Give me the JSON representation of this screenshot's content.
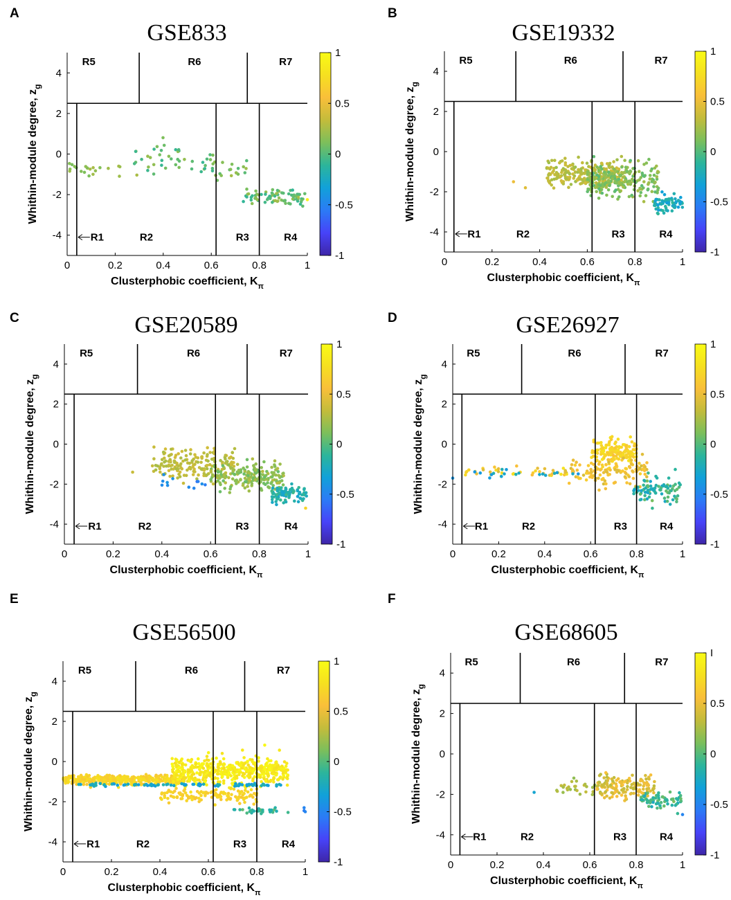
{
  "figure": {
    "colorbar_ticks": [
      "1",
      "0.5",
      "0",
      "-0.5",
      "-1"
    ],
    "colorbar_ticks_alt": [
      "I",
      "0.5",
      "0",
      "-0.5",
      "-1"
    ],
    "colormap": [
      "#3e26a8",
      "#4743f8",
      "#2b7bf6",
      "#11a1d9",
      "#2cb59b",
      "#7cbf5b",
      "#c3bc3b",
      "#f9bf3a",
      "#f6e020",
      "#f9fb15"
    ],
    "axis_color": "#000000"
  },
  "chart_data": [
    {
      "type": "scatter",
      "panel": "A",
      "title": "GSE833",
      "xlabel": "Clusterphobic coefficient, K",
      "xlabel_sub": "π",
      "ylabel": "Whithin-module degree, z",
      "ylabel_sub": "g",
      "xlim": [
        0,
        1
      ],
      "ylim": [
        -5,
        5
      ],
      "xticks": [
        "0",
        "0.2",
        "0.4",
        "0.6",
        "0.8",
        "1"
      ],
      "yticks": [
        "4",
        "2",
        "0",
        "-2",
        "-4"
      ],
      "regions": [
        "R1",
        "R2",
        "R3",
        "R4",
        "R5",
        "R6",
        "R7"
      ],
      "boundaries": {
        "z": 2.5,
        "k_r1": 0.04,
        "k_r6_left": 0.3,
        "k_r6_right": 0.75,
        "k_r3": 0.62,
        "k_r4": 0.8
      },
      "colorbar_label_set": "colorbar_ticks",
      "clusters": [
        {
          "n": 22,
          "kmin": 0.0,
          "kmax": 0.3,
          "zc": -0.7,
          "zs": 0.35,
          "cmin": 0.1,
          "cmax": 0.3,
          "seed": 11
        },
        {
          "n": 45,
          "kmin": 0.28,
          "kmax": 0.62,
          "zc": -0.3,
          "zs": 0.65,
          "cmin": -0.1,
          "cmax": 0.2,
          "seed": 12
        },
        {
          "n": 18,
          "kmin": 0.6,
          "kmax": 0.75,
          "zc": -0.9,
          "zs": 0.5,
          "cmin": 0.0,
          "cmax": 0.25,
          "seed": 13
        },
        {
          "n": 75,
          "kmin": 0.73,
          "kmax": 1.0,
          "zc": -2.1,
          "zs": 0.35,
          "cmin": -0.1,
          "cmax": 0.25,
          "seed": 14
        }
      ],
      "extra_points": [
        [
          1.0,
          -2.25,
          0.9
        ]
      ]
    },
    {
      "type": "scatter",
      "panel": "B",
      "title": "GSE19332",
      "xlabel": "Clusterphobic coefficient, K",
      "xlabel_sub": "π",
      "ylabel": "Whithin-module degree, z",
      "ylabel_sub": "g",
      "xlim": [
        0,
        1
      ],
      "ylim": [
        -5,
        5
      ],
      "xticks": [
        "0",
        "0.2",
        "0.4",
        "0.6",
        "0.8",
        "1"
      ],
      "yticks": [
        "4",
        "2",
        "0",
        "-2",
        "-4"
      ],
      "regions": [
        "R1",
        "R2",
        "R3",
        "R4",
        "R5",
        "R6",
        "R7"
      ],
      "boundaries": {
        "z": 2.5,
        "k_r1": 0.04,
        "k_r6_left": 0.3,
        "k_r6_right": 0.75,
        "k_r3": 0.62,
        "k_r4": 0.8
      },
      "colorbar_label_set": "colorbar_ticks",
      "clusters": [
        {
          "n": 260,
          "kmin": 0.43,
          "kmax": 0.75,
          "zc": -1.1,
          "zs": 0.55,
          "cmin": 0.2,
          "cmax": 0.4,
          "seed": 21
        },
        {
          "n": 220,
          "kmin": 0.6,
          "kmax": 0.9,
          "zc": -1.5,
          "zs": 0.65,
          "cmin": 0.0,
          "cmax": 0.25,
          "seed": 22
        },
        {
          "n": 70,
          "kmin": 0.88,
          "kmax": 1.0,
          "zc": -2.6,
          "zs": 0.4,
          "cmin": -0.35,
          "cmax": -0.1,
          "seed": 23
        }
      ],
      "extra_points": [
        [
          0.29,
          -1.5,
          0.5
        ],
        [
          0.34,
          -1.8,
          0.45
        ]
      ]
    },
    {
      "type": "scatter",
      "panel": "C",
      "title": "GSE20589",
      "xlabel": "Clusterphobic coefficient, K",
      "xlabel_sub": "π",
      "ylabel": "Whithin-module degree, z",
      "ylabel_sub": "g",
      "xlim": [
        0,
        1
      ],
      "ylim": [
        -5,
        5
      ],
      "xticks": [
        "0",
        "0.2",
        "0.4",
        "0.6",
        "0.8",
        "1"
      ],
      "yticks": [
        "4",
        "2",
        "0",
        "-2",
        "-4"
      ],
      "regions": [
        "R1",
        "R2",
        "R3",
        "R4",
        "R5",
        "R6",
        "R7"
      ],
      "boundaries": {
        "z": 2.5,
        "k_r1": 0.04,
        "k_r6_left": 0.3,
        "k_r6_right": 0.75,
        "k_r3": 0.62,
        "k_r4": 0.8
      },
      "colorbar_label_set": "colorbar_ticks",
      "clusters": [
        {
          "n": 180,
          "kmin": 0.36,
          "kmax": 0.7,
          "zc": -1.0,
          "zs": 0.6,
          "cmin": 0.25,
          "cmax": 0.4,
          "seed": 31
        },
        {
          "n": 200,
          "kmin": 0.6,
          "kmax": 0.9,
          "zc": -1.6,
          "zs": 0.55,
          "cmin": 0.05,
          "cmax": 0.3,
          "seed": 32
        },
        {
          "n": 90,
          "kmin": 0.85,
          "kmax": 1.0,
          "zc": -2.5,
          "zs": 0.35,
          "cmin": -0.3,
          "cmax": -0.05,
          "seed": 33
        },
        {
          "n": 12,
          "kmin": 0.4,
          "kmax": 0.58,
          "zc": -1.9,
          "zs": 0.25,
          "cmin": -0.6,
          "cmax": -0.4,
          "seed": 34
        }
      ],
      "extra_points": [
        [
          0.28,
          -1.4,
          0.35
        ],
        [
          0.99,
          -3.2,
          0.7
        ]
      ]
    },
    {
      "type": "scatter",
      "panel": "D",
      "title": "GSE26927",
      "xlabel": "Clusterphobic coefficient, K",
      "xlabel_sub": "π",
      "ylabel": "Whithin-module degree, z",
      "ylabel_sub": "g",
      "xlim": [
        0,
        1
      ],
      "ylim": [
        -5,
        5
      ],
      "xticks": [
        "0",
        "0.2",
        "0.4",
        "0.6",
        "0.8",
        "1"
      ],
      "yticks": [
        "4",
        "2",
        "0",
        "-2",
        "-4"
      ],
      "regions": [
        "R1",
        "R2",
        "R3",
        "R4",
        "R5",
        "R6",
        "R7"
      ],
      "boundaries": {
        "z": 2.5,
        "k_r1": 0.04,
        "k_r6_left": 0.3,
        "k_r6_right": 0.75,
        "k_r3": 0.62,
        "k_r4": 0.8
      },
      "colorbar_label_set": "colorbar_ticks",
      "clusters": [
        {
          "n": 40,
          "kmin": 0.05,
          "kmax": 0.5,
          "zc": -1.4,
          "zs": 0.2,
          "cmin": 0.4,
          "cmax": 0.8,
          "seed": 41
        },
        {
          "n": 160,
          "kmin": 0.6,
          "kmax": 0.8,
          "zc": -0.4,
          "zs": 0.55,
          "cmin": 0.6,
          "cmax": 0.8,
          "seed": 42
        },
        {
          "n": 120,
          "kmin": 0.5,
          "kmax": 0.85,
          "zc": -1.4,
          "zs": 0.6,
          "cmin": 0.4,
          "cmax": 0.7,
          "seed": 43
        },
        {
          "n": 90,
          "kmin": 0.78,
          "kmax": 1.0,
          "zc": -2.3,
          "zs": 0.5,
          "cmin": -0.3,
          "cmax": 0.1,
          "seed": 44
        },
        {
          "n": 18,
          "kmin": 0.08,
          "kmax": 0.6,
          "zc": -1.5,
          "zs": 0.2,
          "cmin": -0.4,
          "cmax": -0.15,
          "seed": 45
        }
      ],
      "extra_points": [
        [
          0.0,
          -1.7,
          -0.4
        ]
      ]
    },
    {
      "type": "scatter",
      "panel": "E",
      "title": "GSE56500",
      "xlabel": "Clusterphobic coefficient, K",
      "xlabel_sub": "π",
      "ylabel": "Whithin-module degree, z",
      "ylabel_sub": "g",
      "xlim": [
        0,
        1
      ],
      "ylim": [
        -5,
        5
      ],
      "xticks": [
        "0",
        "0.2",
        "0.4",
        "0.6",
        "0.8",
        "1"
      ],
      "yticks": [
        "4",
        "2",
        "0",
        "-2",
        "-4"
      ],
      "regions": [
        "R1",
        "R2",
        "R3",
        "R4",
        "R5",
        "R6",
        "R7"
      ],
      "boundaries": {
        "z": 2.5,
        "k_r1": 0.04,
        "k_r6_left": 0.3,
        "k_r6_right": 0.75,
        "k_r3": 0.62,
        "k_r4": 0.8
      },
      "colorbar_label_set": "colorbar_ticks",
      "clusters": [
        {
          "n": 380,
          "kmin": 0.0,
          "kmax": 0.5,
          "zc": -0.9,
          "zs": 0.2,
          "cmin": 0.6,
          "cmax": 0.8,
          "seed": 51
        },
        {
          "n": 500,
          "kmin": 0.45,
          "kmax": 0.93,
          "zc": -0.5,
          "zs": 0.55,
          "cmin": 0.75,
          "cmax": 1.0,
          "seed": 52
        },
        {
          "n": 120,
          "kmin": 0.4,
          "kmax": 0.8,
          "zc": -1.7,
          "zs": 0.3,
          "cmin": 0.6,
          "cmax": 0.75,
          "seed": 53
        },
        {
          "n": 90,
          "kmin": 0.05,
          "kmax": 0.9,
          "zc": -1.15,
          "zs": 0.06,
          "cmin": -0.4,
          "cmax": -0.15,
          "seed": 54
        },
        {
          "n": 30,
          "kmin": 0.7,
          "kmax": 0.93,
          "zc": -2.45,
          "zs": 0.12,
          "cmin": -0.2,
          "cmax": 0.05,
          "seed": 55
        }
      ],
      "extra_points": [
        [
          0.995,
          -2.3,
          -0.5
        ],
        [
          0.995,
          -2.45,
          -0.55
        ],
        [
          1.0,
          -2.5,
          -0.5
        ]
      ]
    },
    {
      "type": "scatter",
      "panel": "F",
      "title": "GSE68605",
      "xlabel": "Clusterphobic coefficient, K",
      "xlabel_sub": "π",
      "ylabel": "Whithin-module degree, z",
      "ylabel_sub": "g",
      "xlim": [
        0,
        1
      ],
      "ylim": [
        -5,
        5
      ],
      "xticks": [
        "0",
        "0.2",
        "0.4",
        "0.6",
        "0.8",
        "1"
      ],
      "yticks": [
        "4",
        "2",
        "0",
        "-2",
        "-4"
      ],
      "regions": [
        "R1",
        "R2",
        "R3",
        "R4",
        "R5",
        "R6",
        "R7"
      ],
      "boundaries": {
        "z": 2.5,
        "k_r1": 0.04,
        "k_r6_left": 0.3,
        "k_r6_right": 0.75,
        "k_r3": 0.62,
        "k_r4": 0.8
      },
      "colorbar_label_set": "colorbar_ticks_alt",
      "clusters": [
        {
          "n": 30,
          "kmin": 0.45,
          "kmax": 0.65,
          "zc": -1.6,
          "zs": 0.3,
          "cmin": 0.1,
          "cmax": 0.35,
          "seed": 61
        },
        {
          "n": 150,
          "kmin": 0.63,
          "kmax": 0.88,
          "zc": -1.6,
          "zs": 0.5,
          "cmin": 0.3,
          "cmax": 0.6,
          "seed": 62
        },
        {
          "n": 70,
          "kmin": 0.82,
          "kmax": 1.0,
          "zc": -2.3,
          "zs": 0.35,
          "cmin": -0.25,
          "cmax": 0.1,
          "seed": 63
        }
      ],
      "extra_points": [
        [
          0.36,
          -1.9,
          -0.3
        ],
        [
          1.0,
          -3.0,
          -0.5
        ]
      ]
    }
  ]
}
